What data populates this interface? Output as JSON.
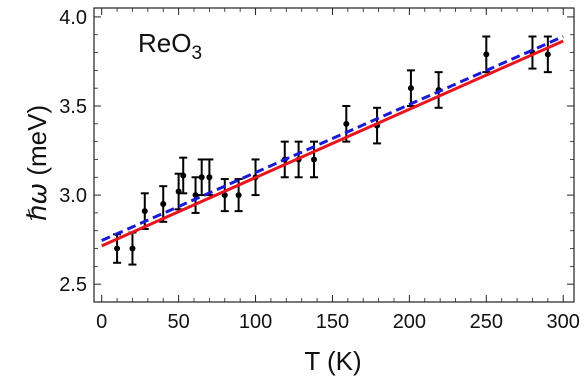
{
  "chart_data": {
    "type": "scatter",
    "annotation": {
      "base": "ReO",
      "subscript": "3"
    },
    "xlabel": "T (K)",
    "ylabel_symbol": "ℏω",
    "ylabel_unit": " (meV)",
    "xlim": [
      -5,
      307
    ],
    "ylim": [
      2.4,
      4.05
    ],
    "xticks": [
      0,
      50,
      100,
      150,
      200,
      250,
      300
    ],
    "xtick_labels": [
      "0",
      "50",
      "100",
      "150",
      "200",
      "250",
      "300"
    ],
    "yticks": [
      2.5,
      3.0,
      3.5,
      4.0
    ],
    "ytick_labels": [
      "2.5",
      "3.0",
      "3.5",
      "4.0"
    ],
    "grid": false,
    "legend": "none",
    "colors": {
      "points": "#000000",
      "fit_red": "#e8141e",
      "fit_blue": "#1a1ad6"
    },
    "series": [
      {
        "type": "scatter",
        "points": [
          {
            "x": 10,
            "y": 2.7,
            "err": 0.08
          },
          {
            "x": 20,
            "y": 2.7,
            "err": 0.09
          },
          {
            "x": 28,
            "y": 2.91,
            "err": 0.1
          },
          {
            "x": 40,
            "y": 2.95,
            "err": 0.1
          },
          {
            "x": 50,
            "y": 3.02,
            "err": 0.1
          },
          {
            "x": 53,
            "y": 3.11,
            "err": 0.1
          },
          {
            "x": 61,
            "y": 3.0,
            "err": 0.1
          },
          {
            "x": 65,
            "y": 3.1,
            "err": 0.1
          },
          {
            "x": 70,
            "y": 3.1,
            "err": 0.1
          },
          {
            "x": 80,
            "y": 3.0,
            "err": 0.09
          },
          {
            "x": 89,
            "y": 3.0,
            "err": 0.09
          },
          {
            "x": 100,
            "y": 3.1,
            "err": 0.1
          },
          {
            "x": 119,
            "y": 3.2,
            "err": 0.1
          },
          {
            "x": 128,
            "y": 3.2,
            "err": 0.1
          },
          {
            "x": 138,
            "y": 3.2,
            "err": 0.1
          },
          {
            "x": 159,
            "y": 3.4,
            "err": 0.1
          },
          {
            "x": 179,
            "y": 3.39,
            "err": 0.1
          },
          {
            "x": 201,
            "y": 3.6,
            "err": 0.1
          },
          {
            "x": 219,
            "y": 3.59,
            "err": 0.1
          },
          {
            "x": 250,
            "y": 3.79,
            "err": 0.1
          },
          {
            "x": 280,
            "y": 3.8,
            "err": 0.09
          },
          {
            "x": 290,
            "y": 3.79,
            "err": 0.1
          }
        ]
      },
      {
        "type": "line",
        "style": "solid",
        "color_key": "fit_red",
        "x": [
          0,
          300
        ],
        "y": [
          2.715,
          3.865
        ]
      },
      {
        "type": "line",
        "style": "dashed",
        "color_key": "fit_blue",
        "x": [
          0,
          300
        ],
        "y": [
          2.745,
          3.89
        ]
      }
    ]
  }
}
